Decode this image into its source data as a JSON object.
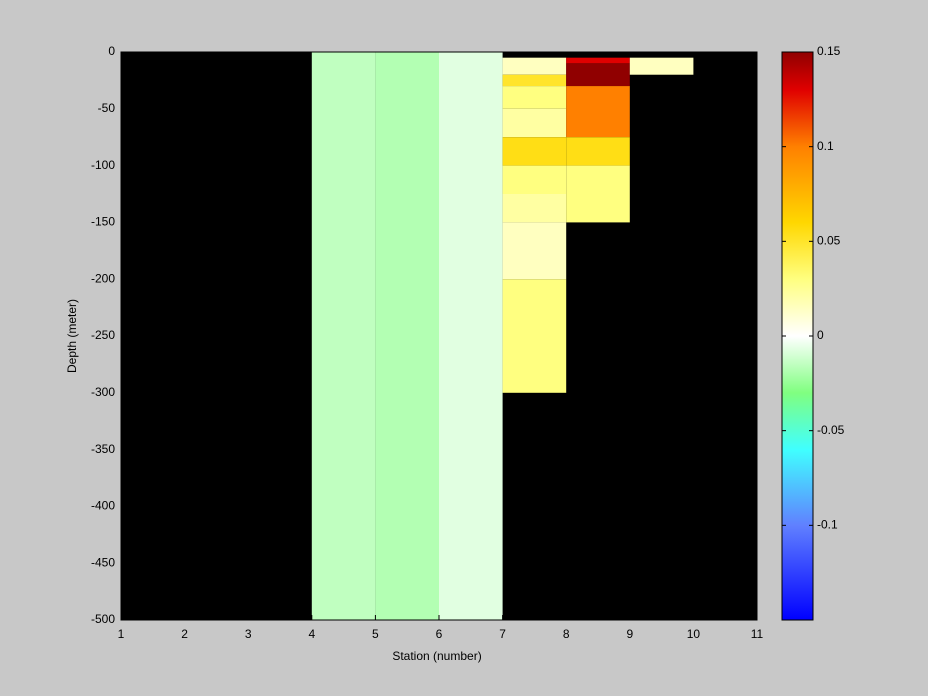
{
  "chart_data": {
    "type": "heatmap",
    "x_label": "Station (number)",
    "y_label": "Depth (meter)",
    "xlim": [
      1,
      11
    ],
    "xticks": [
      1,
      2,
      3,
      4,
      5,
      6,
      7,
      8,
      9,
      10,
      11
    ],
    "ylim": [
      -500,
      0
    ],
    "yticks": [
      0,
      -50,
      -100,
      -150,
      -200,
      -250,
      -300,
      -350,
      -400,
      -450,
      -500
    ],
    "background": "#000000",
    "clim": [
      -0.15,
      0.15
    ],
    "cticks": [
      0.15,
      0.1,
      0.05,
      0,
      -0.05,
      -0.1
    ],
    "colormap": [
      {
        "value": -0.15,
        "color": "#0000ff"
      },
      {
        "value": -0.1,
        "color": "#6080ff"
      },
      {
        "value": -0.06,
        "color": "#40ffff"
      },
      {
        "value": -0.03,
        "color": "#80ff80"
      },
      {
        "value": 0,
        "color": "#ffffff"
      },
      {
        "value": 0.03,
        "color": "#ffff80"
      },
      {
        "value": 0.06,
        "color": "#ffd700"
      },
      {
        "value": 0.1,
        "color": "#ff8000"
      },
      {
        "value": 0.13,
        "color": "#e00000"
      },
      {
        "value": 0.15,
        "color": "#900000"
      }
    ],
    "cells": [
      {
        "x": [
          4,
          5
        ],
        "depth": [
          0,
          -500
        ],
        "value": -0.015
      },
      {
        "x": [
          5,
          6
        ],
        "depth": [
          0,
          -500
        ],
        "value": -0.018
      },
      {
        "x": [
          6,
          7
        ],
        "depth": [
          0,
          -500
        ],
        "value": -0.007
      },
      {
        "x": [
          7,
          8
        ],
        "depth": [
          -5,
          -20
        ],
        "value": 0.015
      },
      {
        "x": [
          7,
          8
        ],
        "depth": [
          -20,
          -30
        ],
        "value": 0.05
      },
      {
        "x": [
          7,
          8
        ],
        "depth": [
          -30,
          -50
        ],
        "value": 0.03
      },
      {
        "x": [
          7,
          8
        ],
        "depth": [
          -50,
          -75
        ],
        "value": 0.022
      },
      {
        "x": [
          7,
          8
        ],
        "depth": [
          -75,
          -100
        ],
        "value": 0.055
      },
      {
        "x": [
          7,
          8
        ],
        "depth": [
          -100,
          -125
        ],
        "value": 0.03
      },
      {
        "x": [
          7,
          8
        ],
        "depth": [
          -125,
          -150
        ],
        "value": 0.022
      },
      {
        "x": [
          7,
          8
        ],
        "depth": [
          -150,
          -200
        ],
        "value": 0.015
      },
      {
        "x": [
          7,
          8
        ],
        "depth": [
          -200,
          -300
        ],
        "value": 0.03
      },
      {
        "x": [
          8,
          9
        ],
        "depth": [
          -5,
          -10
        ],
        "value": 0.13
      },
      {
        "x": [
          8,
          9
        ],
        "depth": [
          -10,
          -30
        ],
        "value": 0.15
      },
      {
        "x": [
          8,
          9
        ],
        "depth": [
          -30,
          -75
        ],
        "value": 0.1
      },
      {
        "x": [
          8,
          9
        ],
        "depth": [
          -75,
          -100
        ],
        "value": 0.055
      },
      {
        "x": [
          8,
          9
        ],
        "depth": [
          -100,
          -150
        ],
        "value": 0.03
      },
      {
        "x": [
          9,
          10
        ],
        "depth": [
          -5,
          -20
        ],
        "value": 0.015
      }
    ]
  }
}
